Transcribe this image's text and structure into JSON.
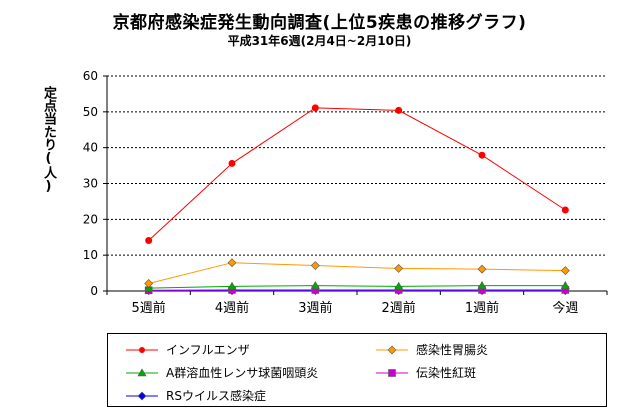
{
  "chart_data": {
    "type": "line",
    "title": "京都府感染症発生動向調査(上位5疾患の推移グラフ)",
    "subtitle": "平成31年6週(2月4日~2月10日)",
    "ylabel": "定点当たり(人)",
    "xlabel": "",
    "categories": [
      "5週前",
      "4週前",
      "3週前",
      "2週前",
      "1週前",
      "今週"
    ],
    "ylim": [
      0,
      60
    ],
    "yticks": [
      0,
      10,
      20,
      30,
      40,
      50,
      60
    ],
    "grid": true,
    "legend_position": "bottom",
    "series": [
      {
        "name": "インフルエンザ",
        "color": "#ff0000",
        "marker": "circle",
        "values": [
          14.1,
          35.6,
          51.1,
          50.4,
          37.9,
          22.6
        ]
      },
      {
        "name": "感染性胃腸炎",
        "color": "#ff9900",
        "marker": "diamond",
        "values": [
          2.1,
          7.9,
          7.1,
          6.3,
          6.1,
          5.7
        ]
      },
      {
        "name": "A群溶血性レンサ球菌咽頭炎",
        "color": "#00aa00",
        "marker": "triangle",
        "values": [
          0.8,
          1.3,
          1.5,
          1.3,
          1.5,
          1.5
        ]
      },
      {
        "name": "伝染性紅斑",
        "color": "#cc00cc",
        "marker": "square",
        "values": [
          0.2,
          0.3,
          0.3,
          0.3,
          0.3,
          0.3
        ]
      },
      {
        "name": "RSウイルス感染症",
        "color": "#0000ff",
        "marker": "diamond",
        "values": [
          0.1,
          0.1,
          0.1,
          0.1,
          0.1,
          0.1
        ]
      }
    ]
  }
}
